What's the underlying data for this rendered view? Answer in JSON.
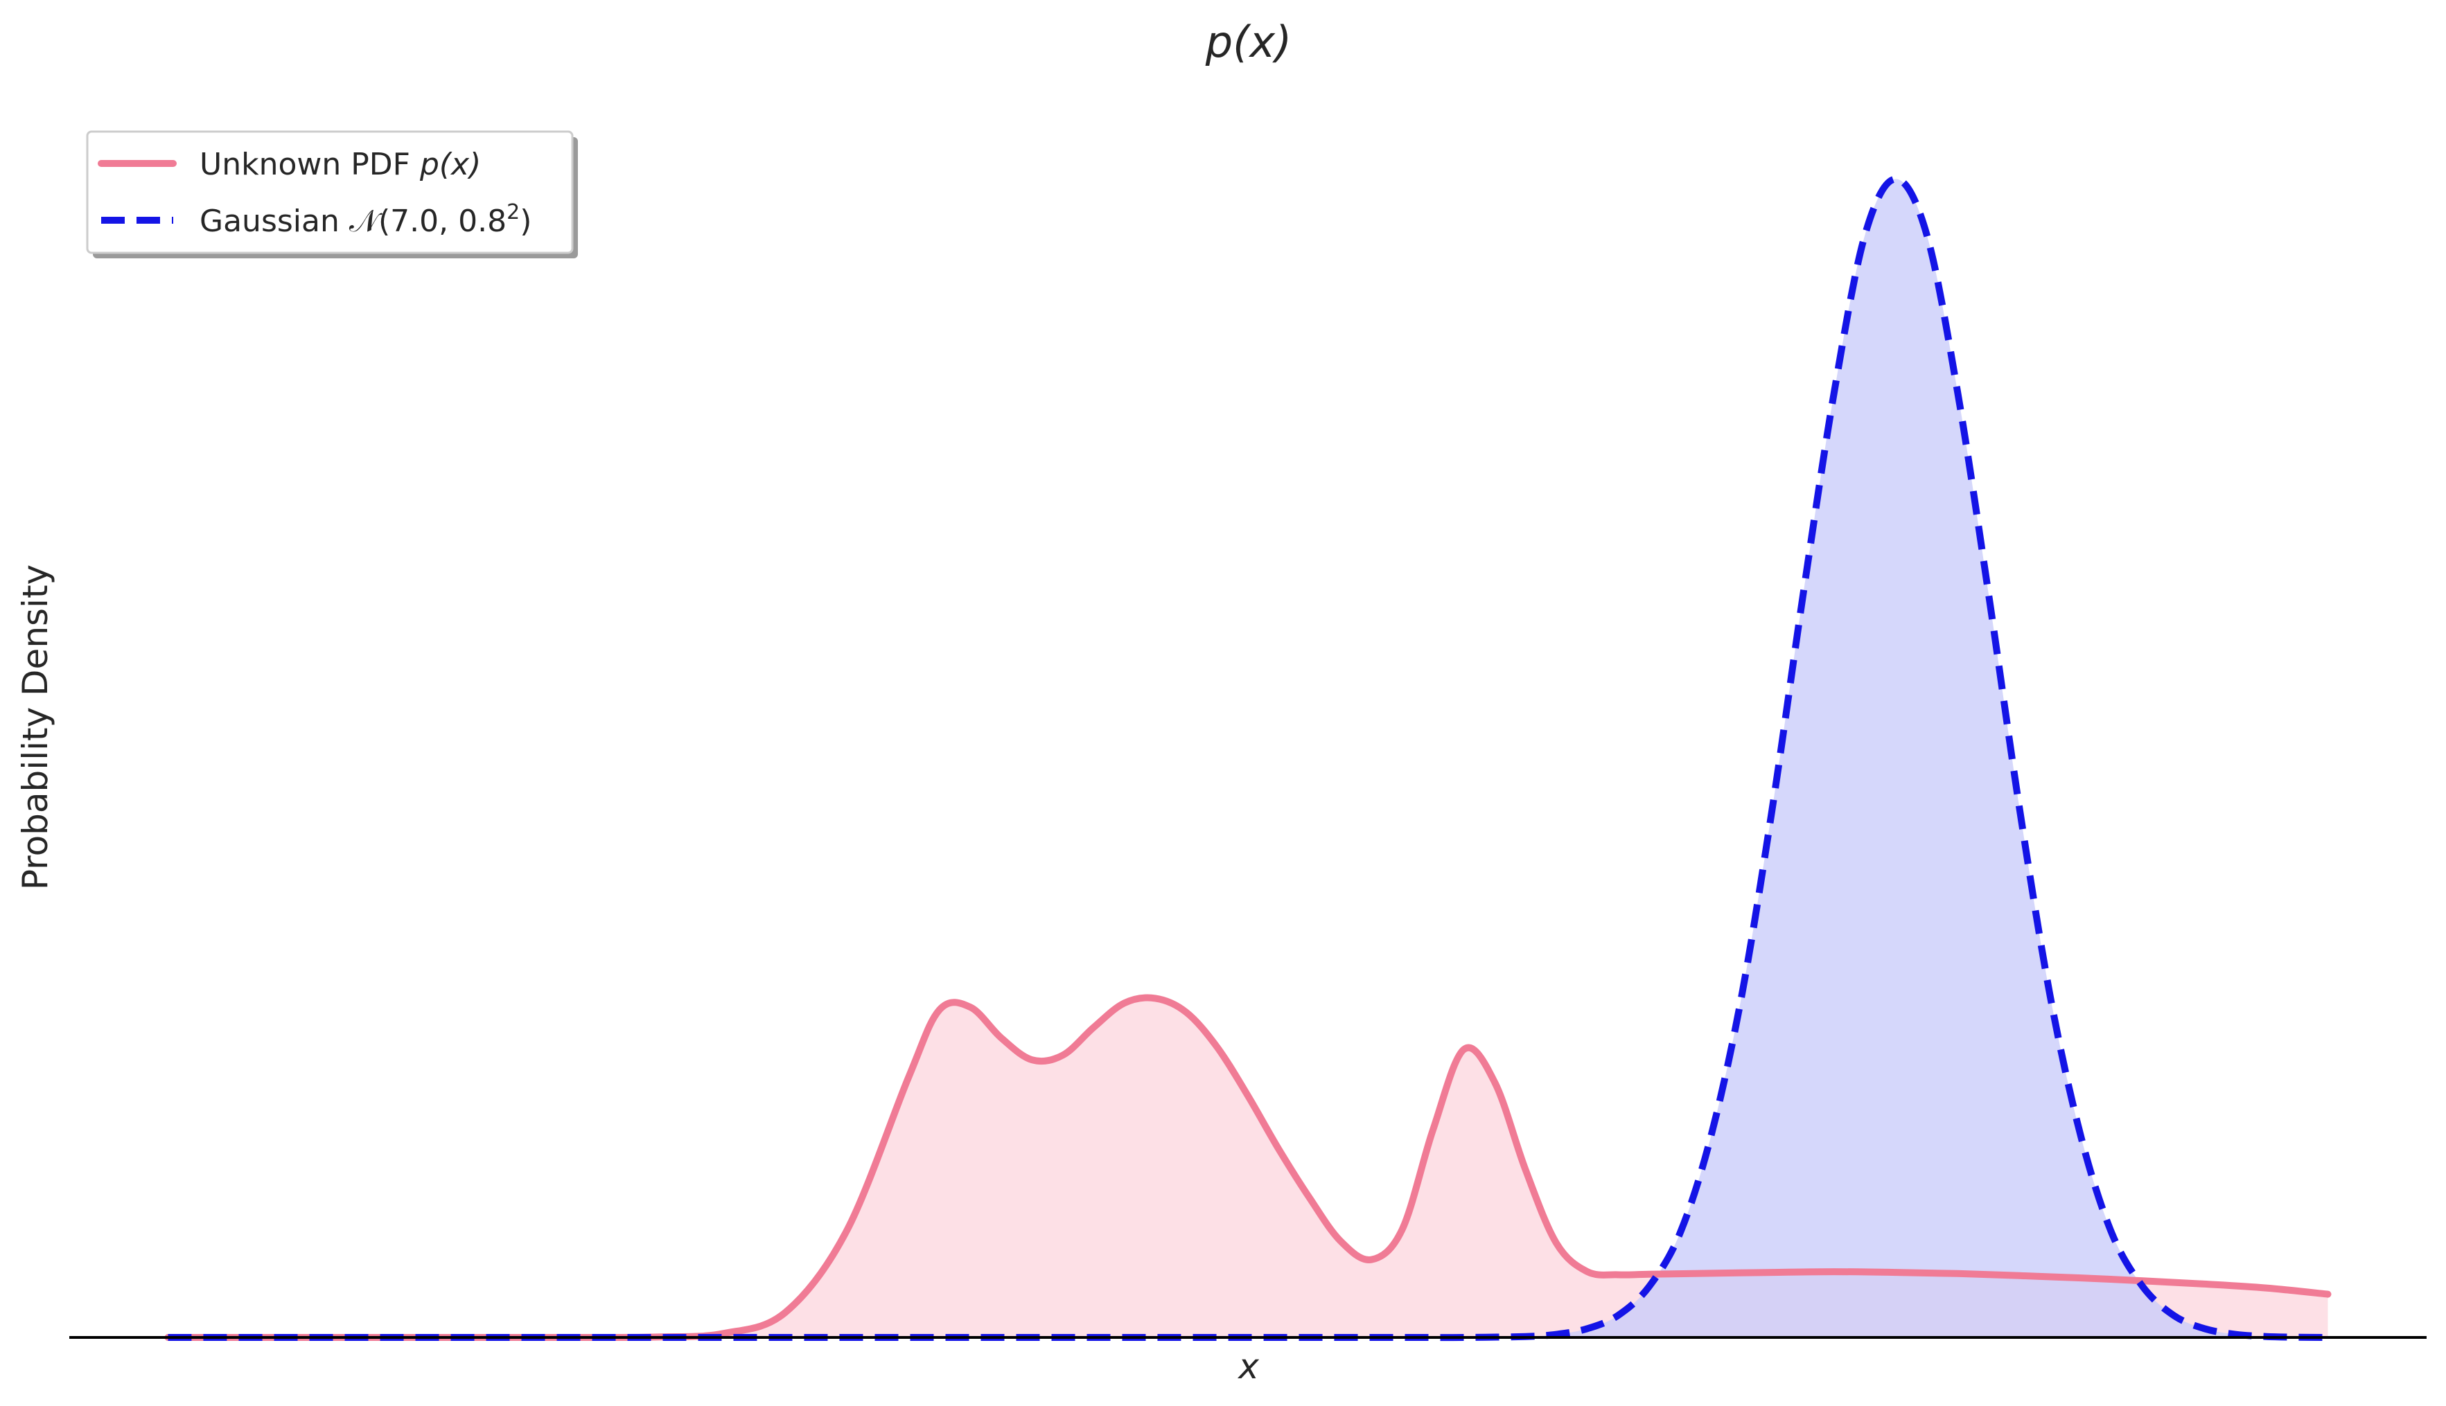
{
  "chart_data": {
    "type": "area",
    "title": "p(x)",
    "xlabel": "x",
    "ylabel": "Probability Density",
    "xlim": [
      -7.8,
      11.3
    ],
    "ylim": [
      0,
      0.54
    ],
    "x_ticks_shown": false,
    "y_ticks_shown": false,
    "grid": false,
    "legend_position": "top-left",
    "series": [
      {
        "name": "Unknown PDF p(x)",
        "line_style": "solid",
        "color": "#f07b95",
        "fill_color": "#fde0e6",
        "x": [
          -7.0,
          -6.5,
          -6.0,
          -5.5,
          -5.0,
          -4.5,
          -4.0,
          -3.5,
          -3.0,
          -2.5,
          -2.0,
          -1.5,
          -1.0,
          -0.75,
          -0.5,
          -0.25,
          0.0,
          0.25,
          0.5,
          0.75,
          1.0,
          1.25,
          1.5,
          1.75,
          2.0,
          2.25,
          2.5,
          2.75,
          3.0,
          3.25,
          3.5,
          3.75,
          4.0,
          4.25,
          4.5,
          4.75,
          5.0,
          5.5,
          6.0,
          6.5,
          7.0,
          7.5,
          8.0,
          8.5,
          9.0,
          9.5,
          10.0,
          10.5
        ],
        "y": [
          0.0,
          0.0,
          0.0,
          0.0,
          0.0,
          0.0,
          0.0,
          0.0,
          0.0002,
          0.0017,
          0.0107,
          0.046,
          0.112,
          0.141,
          0.1422,
          0.129,
          0.1195,
          0.1215,
          0.1335,
          0.144,
          0.146,
          0.14,
          0.125,
          0.104,
          0.081,
          0.06,
          0.0415,
          0.0335,
          0.0465,
          0.0895,
          0.124,
          0.1098,
          0.072,
          0.0405,
          0.0283,
          0.027,
          0.0272,
          0.0276,
          0.028,
          0.0283,
          0.028,
          0.0275,
          0.0266,
          0.0256,
          0.0244,
          0.023,
          0.0213,
          0.0186
        ]
      },
      {
        "name": "Gaussian 𝒩(7.0, 0.8²)",
        "line_style": "dashed",
        "color": "#1414e6",
        "fill_color": "#cbcdfa",
        "x": [
          -7.0,
          -6.0,
          -5.0,
          -4.0,
          -3.0,
          -2.0,
          -1.0,
          0.0,
          1.0,
          2.0,
          2.5,
          3.0,
          3.5,
          4.0,
          4.25,
          4.5,
          4.75,
          5.0,
          5.25,
          5.5,
          5.75,
          6.0,
          6.25,
          6.5,
          6.75,
          7.0,
          7.25,
          7.5,
          7.75,
          8.0,
          8.25,
          8.5,
          8.75,
          9.0,
          9.25,
          9.5,
          9.75,
          10.0,
          10.25,
          10.5
        ],
        "y": [
          0.0,
          0.0,
          0.0,
          0.0,
          0.0,
          0.0,
          0.0,
          0.0,
          0.0,
          0.0,
          0.0,
          0.0,
          0.0,
          0.0004,
          0.0013,
          0.0038,
          0.0095,
          0.0219,
          0.0448,
          0.0863,
          0.147,
          0.2283,
          0.3204,
          0.4069,
          0.4748,
          0.4987,
          0.4748,
          0.4069,
          0.3204,
          0.2283,
          0.147,
          0.0863,
          0.0448,
          0.0219,
          0.0095,
          0.0038,
          0.0013,
          0.0004,
          0.0001,
          0.0
        ]
      }
    ]
  },
  "legend": {
    "entries": [
      {
        "label": "Unknown PDF ",
        "math": "p(x)"
      },
      {
        "label": "Gaussian ",
        "math": "𝒩(7.0, 0.8",
        "sup": "2",
        "tail": ")"
      }
    ]
  }
}
